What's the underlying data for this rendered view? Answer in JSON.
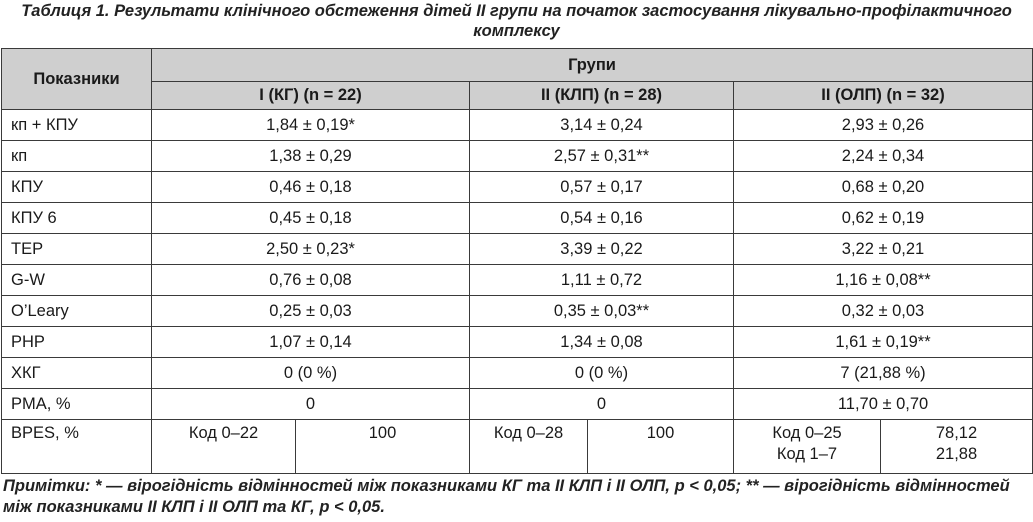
{
  "caption": "Таблиця 1. Результати клінічного обстеження дітей II групи на початок застосування лікувально-профілактичного комплексу",
  "header": {
    "indicators": "Показники",
    "groups": "Групи",
    "group1": "I (КГ) (n = 22)",
    "group2": "II (КЛП) (n = 28)",
    "group3": "II (ОЛП) (n = 32)"
  },
  "rows": [
    {
      "label": "кп + КПУ",
      "g1": "1,84 ± 0,19*",
      "g2": "3,14 ± 0,24",
      "g3": "2,93 ± 0,26"
    },
    {
      "label": "кп",
      "g1": "1,38 ± 0,29",
      "g2": "2,57 ± 0,31**",
      "g3": "2,24 ± 0,34"
    },
    {
      "label": "КПУ",
      "g1": "0,46 ± 0,18",
      "g2": "0,57 ± 0,17",
      "g3": "0,68 ± 0,20"
    },
    {
      "label": "КПУ 6",
      "g1": "0,45 ± 0,18",
      "g2": "0,54 ± 0,16",
      "g3": "0,62 ± 0,19"
    },
    {
      "label": "TEP",
      "g1": "2,50 ± 0,23*",
      "g2": "3,39 ± 0,22",
      "g3": "3,22 ± 0,21"
    },
    {
      "label": "G-W",
      "g1": "0,76 ± 0,08",
      "g2": "1,11 ± 0,72",
      "g3": "1,16 ± 0,08**"
    },
    {
      "label": "O’Leary",
      "g1": "0,25 ± 0,03",
      "g2": "0,35 ± 0,03**",
      "g3": "0,32 ± 0,03"
    },
    {
      "label": "PHP",
      "g1": "1,07 ± 0,14",
      "g2": "1,34 ± 0,08",
      "g3": "1,61 ± 0,19**"
    },
    {
      "label": "ХКГ",
      "g1": "0 (0 %)",
      "g2": "0 (0 %)",
      "g3": "7 (21,88 %)"
    },
    {
      "label": "PMA, %",
      "g1": "0",
      "g2": "0",
      "g3": "11,70 ± 0,70"
    }
  ],
  "bpes": {
    "label": "BPES, %",
    "g1_code": "Код 0–22",
    "g1_value": "100",
    "g2_code": "Код 0–28",
    "g2_value": "100",
    "g3_code_1": "Код 0–25",
    "g3_code_2": "Код 1–7",
    "g3_value_1": "78,12",
    "g3_value_2": "21,88"
  },
  "notes": "Примітки: * — вірогідність відмінностей між показниками КГ та II КЛП і II ОЛП, р < 0,05; ** — вірогідність відмінностей між показниками II КЛП і II ОЛП та КГ, р < 0,05."
}
